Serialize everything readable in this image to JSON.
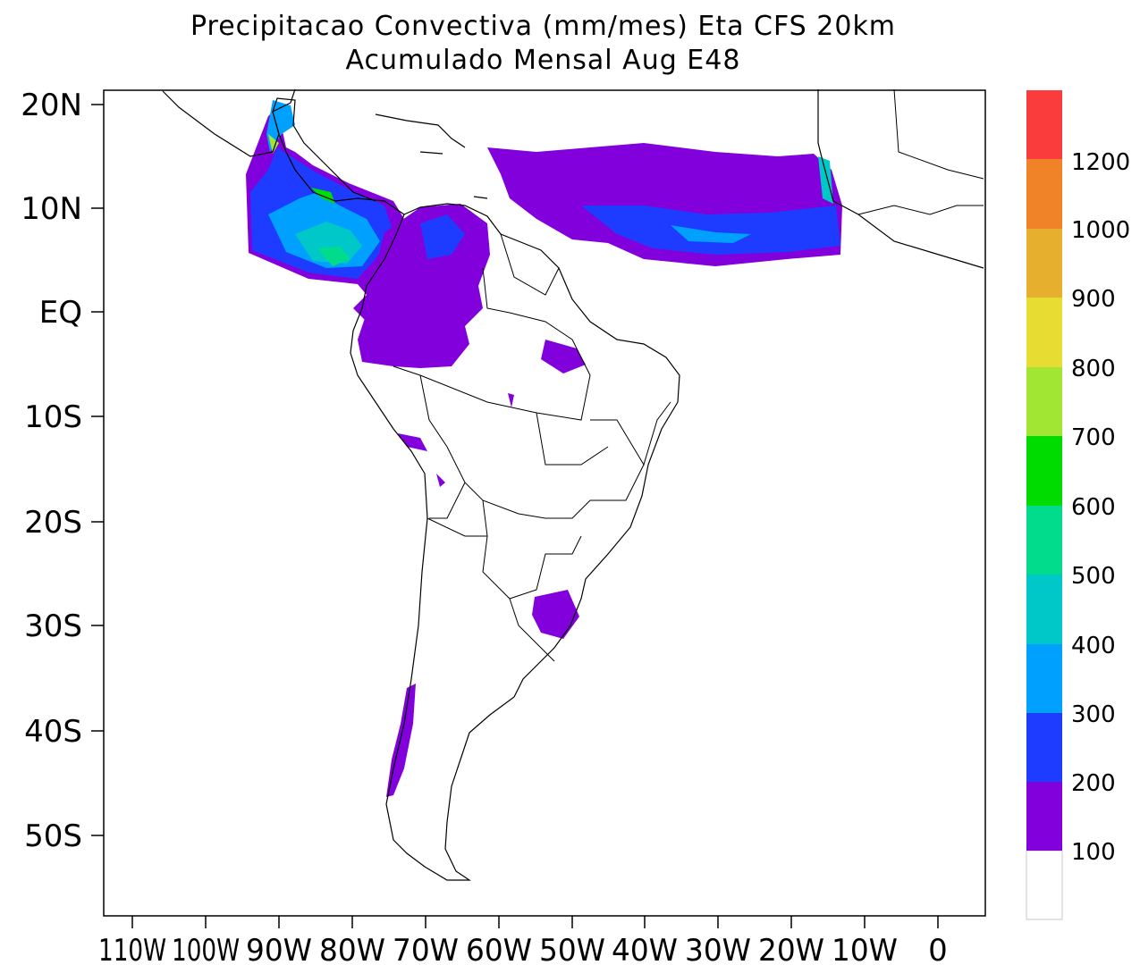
{
  "title": {
    "line1": "Precipitacao Convectiva (mm/mes) Eta CFS 20km",
    "line2": "Acumulado Mensal Aug  E48"
  },
  "map": {
    "lat_labels": [
      "20N",
      "10N",
      "EQ",
      "10S",
      "20S",
      "30S",
      "40S",
      "50S"
    ],
    "lon_labels": [
      "110W",
      "100W",
      "90W",
      "80W",
      "70W",
      "60W",
      "50W",
      "40W",
      "30W",
      "20W",
      "10W",
      "0"
    ]
  },
  "colorbar": {
    "levels": [
      "100",
      "200",
      "300",
      "400",
      "500",
      "600",
      "700",
      "800",
      "900",
      "1000",
      "1200"
    ],
    "colors": [
      "#ffffff",
      "#8200dc",
      "#1e3cff",
      "#00a0ff",
      "#00c8c8",
      "#00dc8c",
      "#00dc00",
      "#a0e632",
      "#e6dc32",
      "#e6af2d",
      "#f08228",
      "#fa3c3c"
    ]
  }
}
